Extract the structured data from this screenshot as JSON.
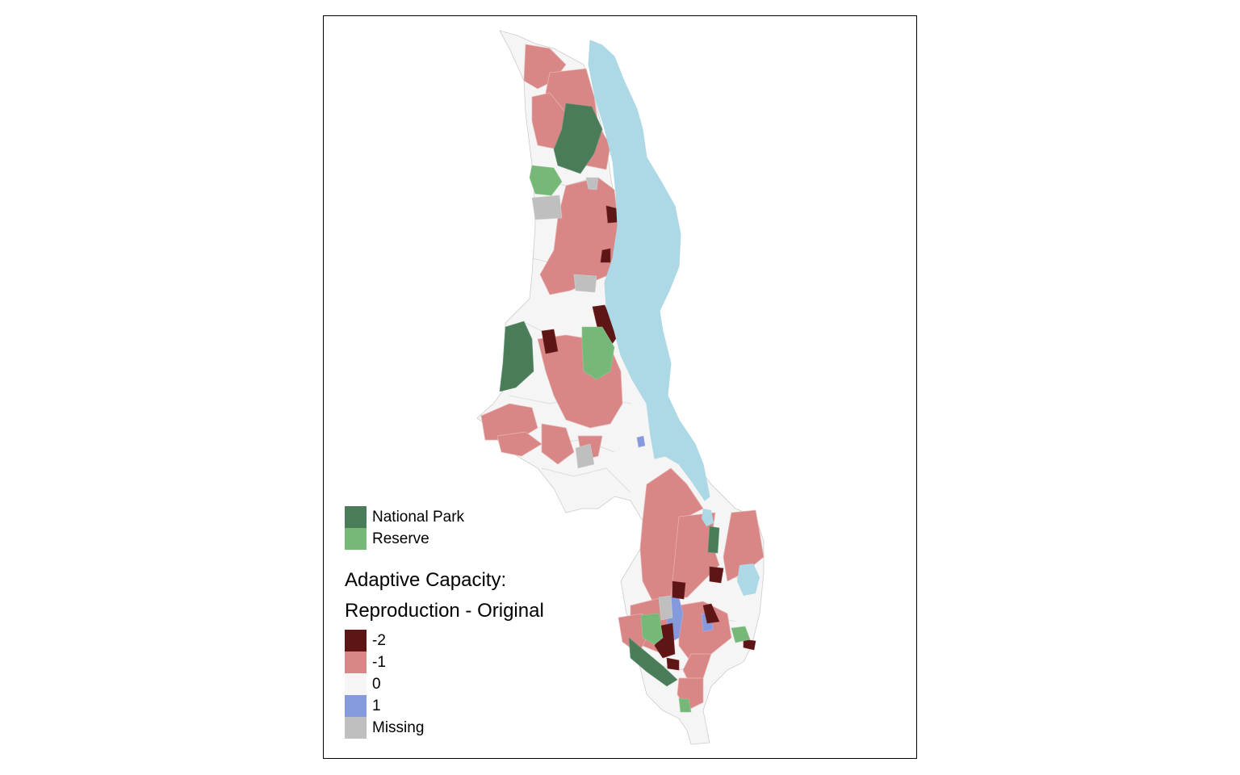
{
  "map": {
    "legend_parks": {
      "items": [
        {
          "label": "National Park",
          "color": "#4a7c59"
        },
        {
          "label": "Reserve",
          "color": "#76b877"
        }
      ]
    },
    "legend_capacity": {
      "title_line1": "Adaptive Capacity:",
      "title_line2": "Reproduction - Original",
      "items": [
        {
          "label": "-2",
          "color": "#5e1515"
        },
        {
          "label": "-1",
          "color": "#d98686"
        },
        {
          "label": "0",
          "color": "#f5f5f5"
        },
        {
          "label": "1",
          "color": "#8599dd"
        },
        {
          "label": "Missing",
          "color": "#bfbfbf"
        }
      ]
    },
    "colors": {
      "lake": "#add8e6",
      "border": "#cccccc",
      "frame": "#000000"
    }
  }
}
